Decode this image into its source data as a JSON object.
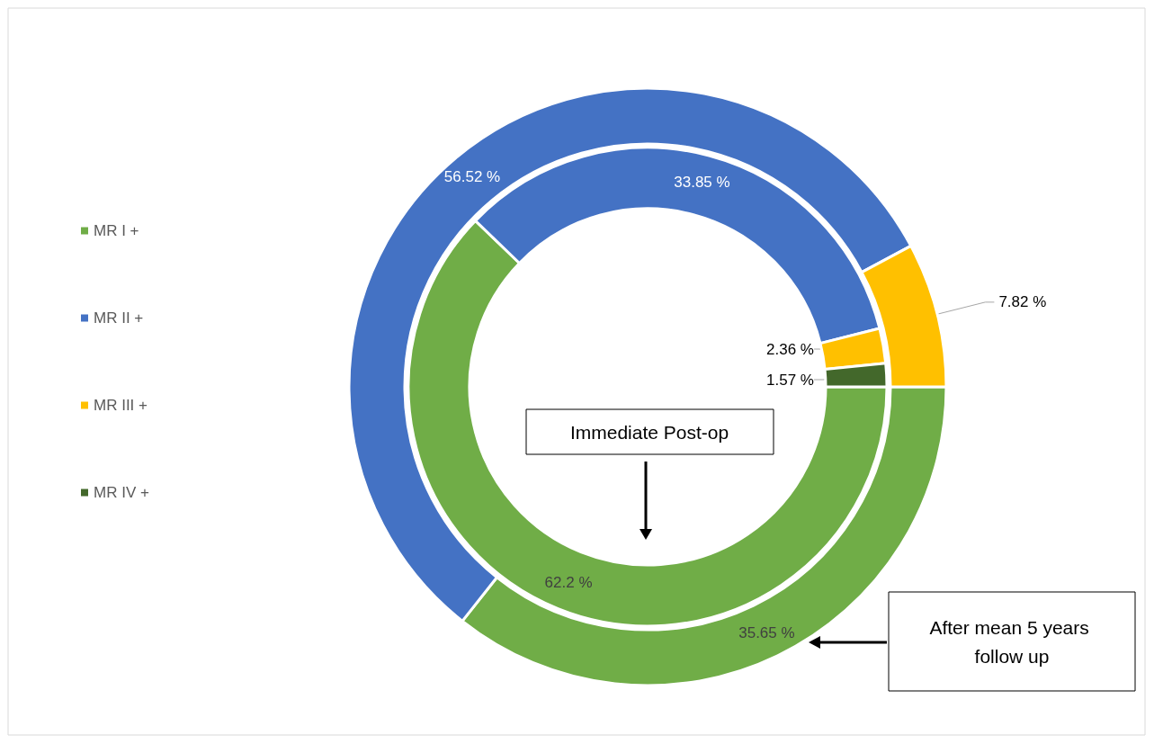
{
  "chart_data": {
    "type": "donut",
    "categories": [
      "MR I +",
      "MR II +",
      "MR III +",
      "MR IV +"
    ],
    "colors": [
      "#70ad47",
      "#4472c4",
      "#ffc000",
      "#43682b"
    ],
    "legend": "left",
    "series": [
      {
        "name": "Immediate Post-op",
        "values": [
          62.2,
          33.85,
          2.36,
          1.57
        ],
        "value_labels": [
          "62.2 %",
          "33.85 %",
          "2.36 %",
          "1.57 %"
        ]
      },
      {
        "name": "After mean 5 years follow up",
        "values": [
          35.65,
          56.52,
          7.82,
          null
        ],
        "value_labels": [
          "35.65 %",
          "56.52 %",
          "7.82 %",
          null
        ]
      }
    ]
  }
}
